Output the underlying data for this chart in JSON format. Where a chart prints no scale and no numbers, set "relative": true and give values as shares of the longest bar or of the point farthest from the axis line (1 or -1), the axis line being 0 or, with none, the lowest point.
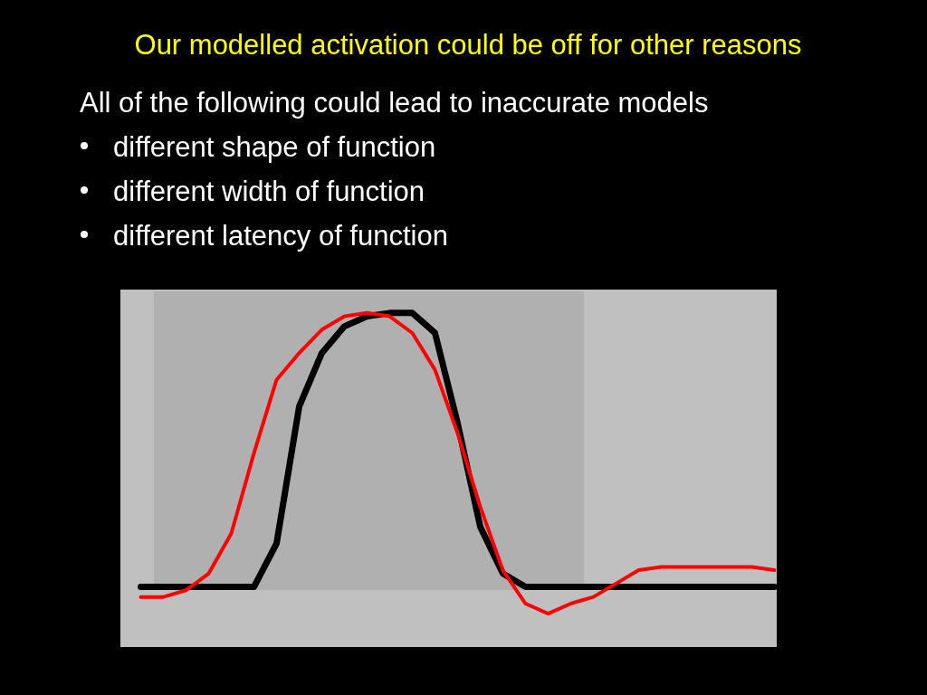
{
  "chart_data": {
    "type": "line",
    "title": "Our modelled activation could be off for other reasons",
    "relative": true,
    "annotations": [
      "All of the following could lead to inaccurate models",
      "different shape of function",
      "different width of function",
      "different latency of function"
    ],
    "categories": [
      null,
      null,
      null,
      null,
      null,
      null,
      null,
      null,
      null,
      null,
      null,
      null,
      null,
      null,
      null,
      null,
      null,
      null,
      null,
      null,
      null,
      null,
      null,
      null,
      null,
      null,
      null,
      null,
      null
    ],
    "series": [
      {
        "color": "#000000",
        "values": [
          0.18,
          0.18,
          0.18,
          0.18,
          0.18,
          0.18,
          0.31,
          0.72,
          0.88,
          0.96,
          0.99,
          1,
          1,
          0.94,
          0.67,
          0.36,
          0.22,
          0.18,
          0.18,
          0.18,
          0.18,
          0.18,
          0.18,
          0.18,
          0.18,
          0.18,
          0.18,
          0.18,
          0.18
        ]
      },
      {
        "color": "#ff0000",
        "values": [
          0.15,
          0.15,
          0.17,
          0.22,
          0.34,
          0.58,
          0.8,
          0.88,
          0.95,
          0.99,
          1,
          0.99,
          0.94,
          0.83,
          0.64,
          0.42,
          0.23,
          0.13,
          0.1,
          0.13,
          0.15,
          0.19,
          0.23,
          0.24,
          0.24,
          0.24,
          0.24,
          0.24,
          0.23
        ]
      }
    ]
  }
}
